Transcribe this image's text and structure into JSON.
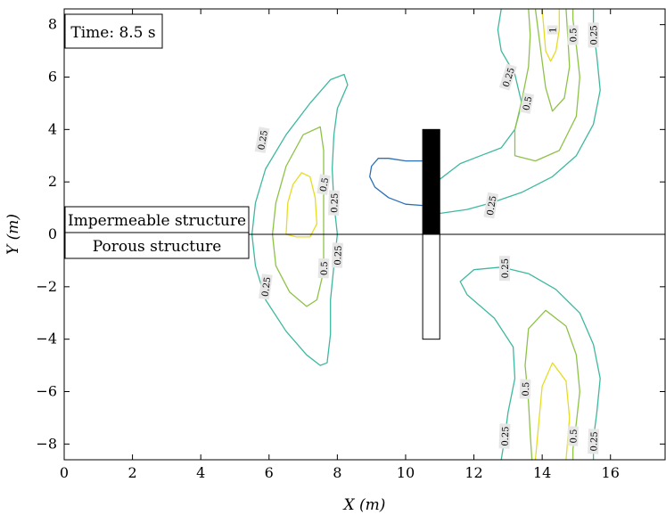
{
  "chart_data": {
    "type": "contour",
    "xlabel": "X (m)",
    "ylabel": "Y (m)",
    "xlim": [
      0,
      17.6
    ],
    "ylim": [
      -8.6,
      8.6
    ],
    "xticks": [
      0,
      2,
      4,
      6,
      8,
      10,
      12,
      14,
      16
    ],
    "yticks": [
      -8,
      -6,
      -4,
      -2,
      0,
      2,
      4,
      6,
      8
    ],
    "xtick_labels": [
      "0",
      "2",
      "4",
      "6",
      "8",
      "10",
      "12",
      "14",
      "16"
    ],
    "ytick_labels": [
      "−8",
      "−6",
      "−4",
      "−2",
      "0",
      "2",
      "4",
      "6",
      "8"
    ],
    "levels": [
      0.25,
      0.5,
      1
    ],
    "level_colors": {
      "0.25": "#3fb8a0",
      "0.5": "#8fc248",
      "1": "#e6dc25",
      "low": "#2a6fb8"
    },
    "annotations": {
      "time": "Time: 8.5 s",
      "upper_region": "Impermeable structure",
      "lower_region": "Porous structure"
    },
    "structure": {
      "x": [
        10.5,
        11.0
      ],
      "impermeable_y": [
        0,
        4
      ],
      "porous_y": [
        -4,
        0
      ],
      "impermeable_fill": "#000000",
      "porous_fill": "#ffffff"
    },
    "contours": [
      {
        "level": "low",
        "color": "#2a6fb8",
        "closed": false,
        "points": [
          [
            10.5,
            2.8
          ],
          [
            10.0,
            2.8
          ],
          [
            9.5,
            2.9
          ],
          [
            9.2,
            2.9
          ],
          [
            9.0,
            2.6
          ],
          [
            8.95,
            2.2
          ],
          [
            9.1,
            1.8
          ],
          [
            9.5,
            1.4
          ],
          [
            10.0,
            1.15
          ],
          [
            10.5,
            1.1
          ]
        ]
      },
      {
        "level": "0.25",
        "color": "#3fb8a0",
        "closed": false,
        "points": [
          [
            5.5,
            0
          ],
          [
            5.6,
            1.2
          ],
          [
            5.9,
            2.5
          ],
          [
            6.5,
            3.8
          ],
          [
            7.2,
            5.0
          ],
          [
            7.8,
            5.9
          ],
          [
            8.2,
            6.1
          ],
          [
            8.3,
            5.7
          ],
          [
            8.0,
            4.8
          ],
          [
            7.9,
            3.8
          ],
          [
            7.85,
            2.5
          ],
          [
            7.9,
            1.2
          ],
          [
            8.0,
            0
          ]
        ]
      },
      {
        "level": "0.25",
        "color": "#3fb8a0",
        "closed": false,
        "points": [
          [
            5.5,
            0
          ],
          [
            5.6,
            -1.2
          ],
          [
            5.9,
            -2.5
          ],
          [
            6.5,
            -3.7
          ],
          [
            7.1,
            -4.6
          ],
          [
            7.5,
            -5.0
          ],
          [
            7.7,
            -4.9
          ],
          [
            7.8,
            -3.8
          ],
          [
            7.8,
            -2.5
          ],
          [
            7.9,
            -1.2
          ],
          [
            8.0,
            0
          ]
        ]
      },
      {
        "level": "0.5",
        "color": "#8fc248",
        "closed": false,
        "points": [
          [
            6.1,
            0
          ],
          [
            6.2,
            1.2
          ],
          [
            6.5,
            2.6
          ],
          [
            7.0,
            3.8
          ],
          [
            7.5,
            4.1
          ],
          [
            7.6,
            3.2
          ],
          [
            7.6,
            2.0
          ],
          [
            7.6,
            1.0
          ],
          [
            7.6,
            0
          ]
        ]
      },
      {
        "level": "0.5",
        "color": "#8fc248",
        "closed": false,
        "points": [
          [
            6.1,
            0
          ],
          [
            6.2,
            -1.2
          ],
          [
            6.6,
            -2.2
          ],
          [
            7.1,
            -2.75
          ],
          [
            7.4,
            -2.5
          ],
          [
            7.6,
            -1.4
          ],
          [
            7.6,
            0
          ]
        ]
      },
      {
        "level": "1",
        "color": "#e6dc25",
        "closed": true,
        "points": [
          [
            6.5,
            0
          ],
          [
            6.55,
            1.2
          ],
          [
            6.7,
            1.9
          ],
          [
            6.95,
            2.35
          ],
          [
            7.2,
            2.2
          ],
          [
            7.35,
            1.4
          ],
          [
            7.4,
            0.4
          ],
          [
            7.2,
            -0.1
          ],
          [
            6.8,
            -0.1
          ]
        ]
      },
      {
        "level": "0.25",
        "color": "#3fb8a0",
        "closed": false,
        "points": [
          [
            11.0,
            2.1
          ],
          [
            11.6,
            2.7
          ],
          [
            12.2,
            3.0
          ],
          [
            12.8,
            3.3
          ],
          [
            13.2,
            4.0
          ],
          [
            13.4,
            5.0
          ],
          [
            13.2,
            6.1
          ],
          [
            12.8,
            7.0
          ],
          [
            12.7,
            7.8
          ],
          [
            12.8,
            8.6
          ]
        ]
      },
      {
        "level": "0.25",
        "color": "#3fb8a0",
        "closed": false,
        "points": [
          [
            11.0,
            0.8
          ],
          [
            11.8,
            0.95
          ],
          [
            12.5,
            1.2
          ],
          [
            13.4,
            1.6
          ],
          [
            14.3,
            2.2
          ],
          [
            15.0,
            3.0
          ],
          [
            15.5,
            4.2
          ],
          [
            15.7,
            5.5
          ],
          [
            15.6,
            6.8
          ],
          [
            15.5,
            7.8
          ],
          [
            15.5,
            8.6
          ]
        ]
      },
      {
        "level": "0.5",
        "color": "#8fc248",
        "closed": false,
        "points": [
          [
            13.6,
            8.6
          ],
          [
            13.65,
            7.6
          ],
          [
            13.6,
            6.4
          ],
          [
            13.4,
            5.1
          ],
          [
            13.2,
            4.0
          ],
          [
            13.2,
            3.0
          ],
          [
            13.8,
            2.8
          ],
          [
            14.5,
            3.2
          ],
          [
            15.0,
            4.5
          ],
          [
            15.1,
            6.0
          ],
          [
            15.0,
            7.2
          ],
          [
            14.9,
            8.2
          ],
          [
            14.9,
            8.6
          ]
        ]
      },
      {
        "level": "0.5",
        "color": "#8fc248",
        "closed": false,
        "points": [
          [
            13.8,
            8.6
          ],
          [
            13.9,
            7.6
          ],
          [
            14.0,
            6.6
          ],
          [
            14.1,
            5.6
          ],
          [
            14.3,
            4.7
          ],
          [
            14.65,
            5.2
          ],
          [
            14.8,
            6.4
          ],
          [
            14.75,
            7.5
          ],
          [
            14.7,
            8.6
          ]
        ]
      },
      {
        "level": "1",
        "color": "#e6dc25",
        "closed": false,
        "points": [
          [
            14.0,
            8.6
          ],
          [
            14.05,
            7.8
          ],
          [
            14.1,
            7.0
          ],
          [
            14.25,
            6.6
          ],
          [
            14.4,
            7.0
          ],
          [
            14.5,
            7.8
          ],
          [
            14.5,
            8.6
          ]
        ]
      },
      {
        "level": "0.25",
        "color": "#3fb8a0",
        "closed": false,
        "points": [
          [
            12.8,
            -8.6
          ],
          [
            12.9,
            -7.8
          ],
          [
            13.0,
            -6.8
          ],
          [
            13.2,
            -5.5
          ],
          [
            13.15,
            -4.3
          ],
          [
            12.6,
            -3.2
          ],
          [
            11.8,
            -2.3
          ],
          [
            11.6,
            -1.8
          ],
          [
            12.0,
            -1.35
          ],
          [
            12.8,
            -1.25
          ],
          [
            13.6,
            -1.5
          ],
          [
            14.4,
            -2.1
          ],
          [
            15.1,
            -3.0
          ],
          [
            15.5,
            -4.2
          ],
          [
            15.7,
            -5.5
          ],
          [
            15.6,
            -6.8
          ],
          [
            15.5,
            -7.8
          ],
          [
            15.5,
            -8.6
          ]
        ]
      },
      {
        "level": "0.5",
        "color": "#8fc248",
        "closed": false,
        "points": [
          [
            13.7,
            -8.6
          ],
          [
            13.65,
            -7.6
          ],
          [
            13.6,
            -6.4
          ],
          [
            13.5,
            -5.0
          ],
          [
            13.6,
            -3.6
          ],
          [
            14.1,
            -2.9
          ],
          [
            14.7,
            -3.5
          ],
          [
            15.0,
            -4.6
          ],
          [
            15.1,
            -6.0
          ],
          [
            15.0,
            -7.2
          ],
          [
            14.9,
            -8.2
          ],
          [
            14.9,
            -8.6
          ]
        ]
      },
      {
        "level": "1",
        "color": "#e6dc25",
        "closed": false,
        "points": [
          [
            13.8,
            -8.6
          ],
          [
            13.9,
            -7.2
          ],
          [
            14.0,
            -5.8
          ],
          [
            14.3,
            -4.9
          ],
          [
            14.7,
            -5.6
          ],
          [
            14.8,
            -7.0
          ],
          [
            14.7,
            -8.6
          ]
        ]
      }
    ],
    "contour_labels": [
      {
        "text": "0.25",
        "x": 5.8,
        "y": 3.6,
        "rot": -80
      },
      {
        "text": "0.5",
        "x": 7.6,
        "y": 1.9,
        "rot": -80
      },
      {
        "text": "0.25",
        "x": 7.9,
        "y": 1.2,
        "rot": -88
      },
      {
        "text": "0.5",
        "x": 7.6,
        "y": -1.3,
        "rot": -88
      },
      {
        "text": "0.25",
        "x": 8.0,
        "y": -0.8,
        "rot": -88
      },
      {
        "text": "0.25",
        "x": 5.9,
        "y": -2.0,
        "rot": -82
      },
      {
        "text": "1",
        "x": 14.3,
        "y": 7.8,
        "rot": -90
      },
      {
        "text": "0.5",
        "x": 14.9,
        "y": 7.6,
        "rot": -90
      },
      {
        "text": "0.25",
        "x": 15.5,
        "y": 7.6,
        "rot": -90
      },
      {
        "text": "0.25",
        "x": 13.0,
        "y": 6.0,
        "rot": -72
      },
      {
        "text": "0.5",
        "x": 13.55,
        "y": 5.0,
        "rot": -78
      },
      {
        "text": "0.25",
        "x": 12.5,
        "y": 1.1,
        "rot": -80
      },
      {
        "text": "0.25",
        "x": 12.9,
        "y": -1.3,
        "rot": -90
      },
      {
        "text": "0.5",
        "x": 13.5,
        "y": -5.9,
        "rot": -88
      },
      {
        "text": "0.25",
        "x": 12.9,
        "y": -7.7,
        "rot": -88
      },
      {
        "text": "0.5",
        "x": 14.9,
        "y": -7.7,
        "rot": -88
      },
      {
        "text": "0.25",
        "x": 15.5,
        "y": -7.9,
        "rot": -88
      }
    ]
  }
}
